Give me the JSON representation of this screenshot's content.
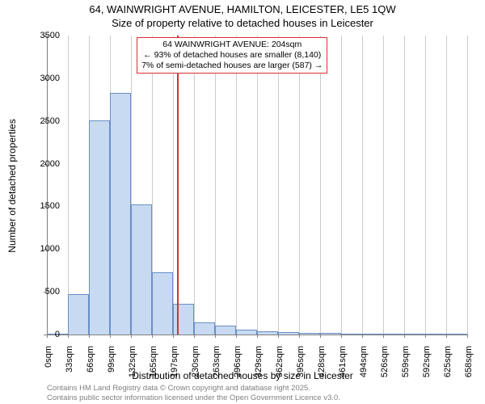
{
  "title_line1": "64, WAINWRIGHT AVENUE, HAMILTON, LEICESTER, LE5 1QW",
  "title_line2": "Size of property relative to detached houses in Leicester",
  "ylabel": "Number of detached properties",
  "xlabel": "Distribution of detached houses by size in Leicester",
  "footer_line1": "Contains HM Land Registry data © Crown copyright and database right 2025.",
  "footer_line2": "Contains public sector information licensed under the Open Government Licence v3.0.",
  "chart": {
    "type": "histogram",
    "ylim": [
      0,
      3500
    ],
    "ytick_step": 500,
    "yticks": [
      0,
      500,
      1000,
      1500,
      2000,
      2500,
      3000,
      3500
    ],
    "xticks": [
      "0sqm",
      "33sqm",
      "66sqm",
      "99sqm",
      "132sqm",
      "165sqm",
      "197sqm",
      "230sqm",
      "263sqm",
      "296sqm",
      "329sqm",
      "362sqm",
      "395sqm",
      "428sqm",
      "461sqm",
      "494sqm",
      "526sqm",
      "559sqm",
      "592sqm",
      "625sqm",
      "658sqm"
    ],
    "bar_values": [
      0,
      470,
      2510,
      2830,
      1520,
      730,
      360,
      140,
      100,
      60,
      40,
      30,
      20,
      20,
      10,
      10,
      5,
      5,
      5,
      5
    ],
    "bar_fill": "#c8daf1",
    "bar_stroke": "#6a8fc5",
    "background_color": "#ffffff",
    "grid_color": "#cccccc",
    "axis_color": "#808080",
    "ref_value": 204,
    "ref_color": "#d93030",
    "annotation": {
      "border_color": "#d93030",
      "line1": "64 WAINWRIGHT AVENUE: 204sqm",
      "line2": "← 93% of detached houses are smaller (8,140)",
      "line3": "7% of semi-detached houses are larger (587) →"
    }
  }
}
